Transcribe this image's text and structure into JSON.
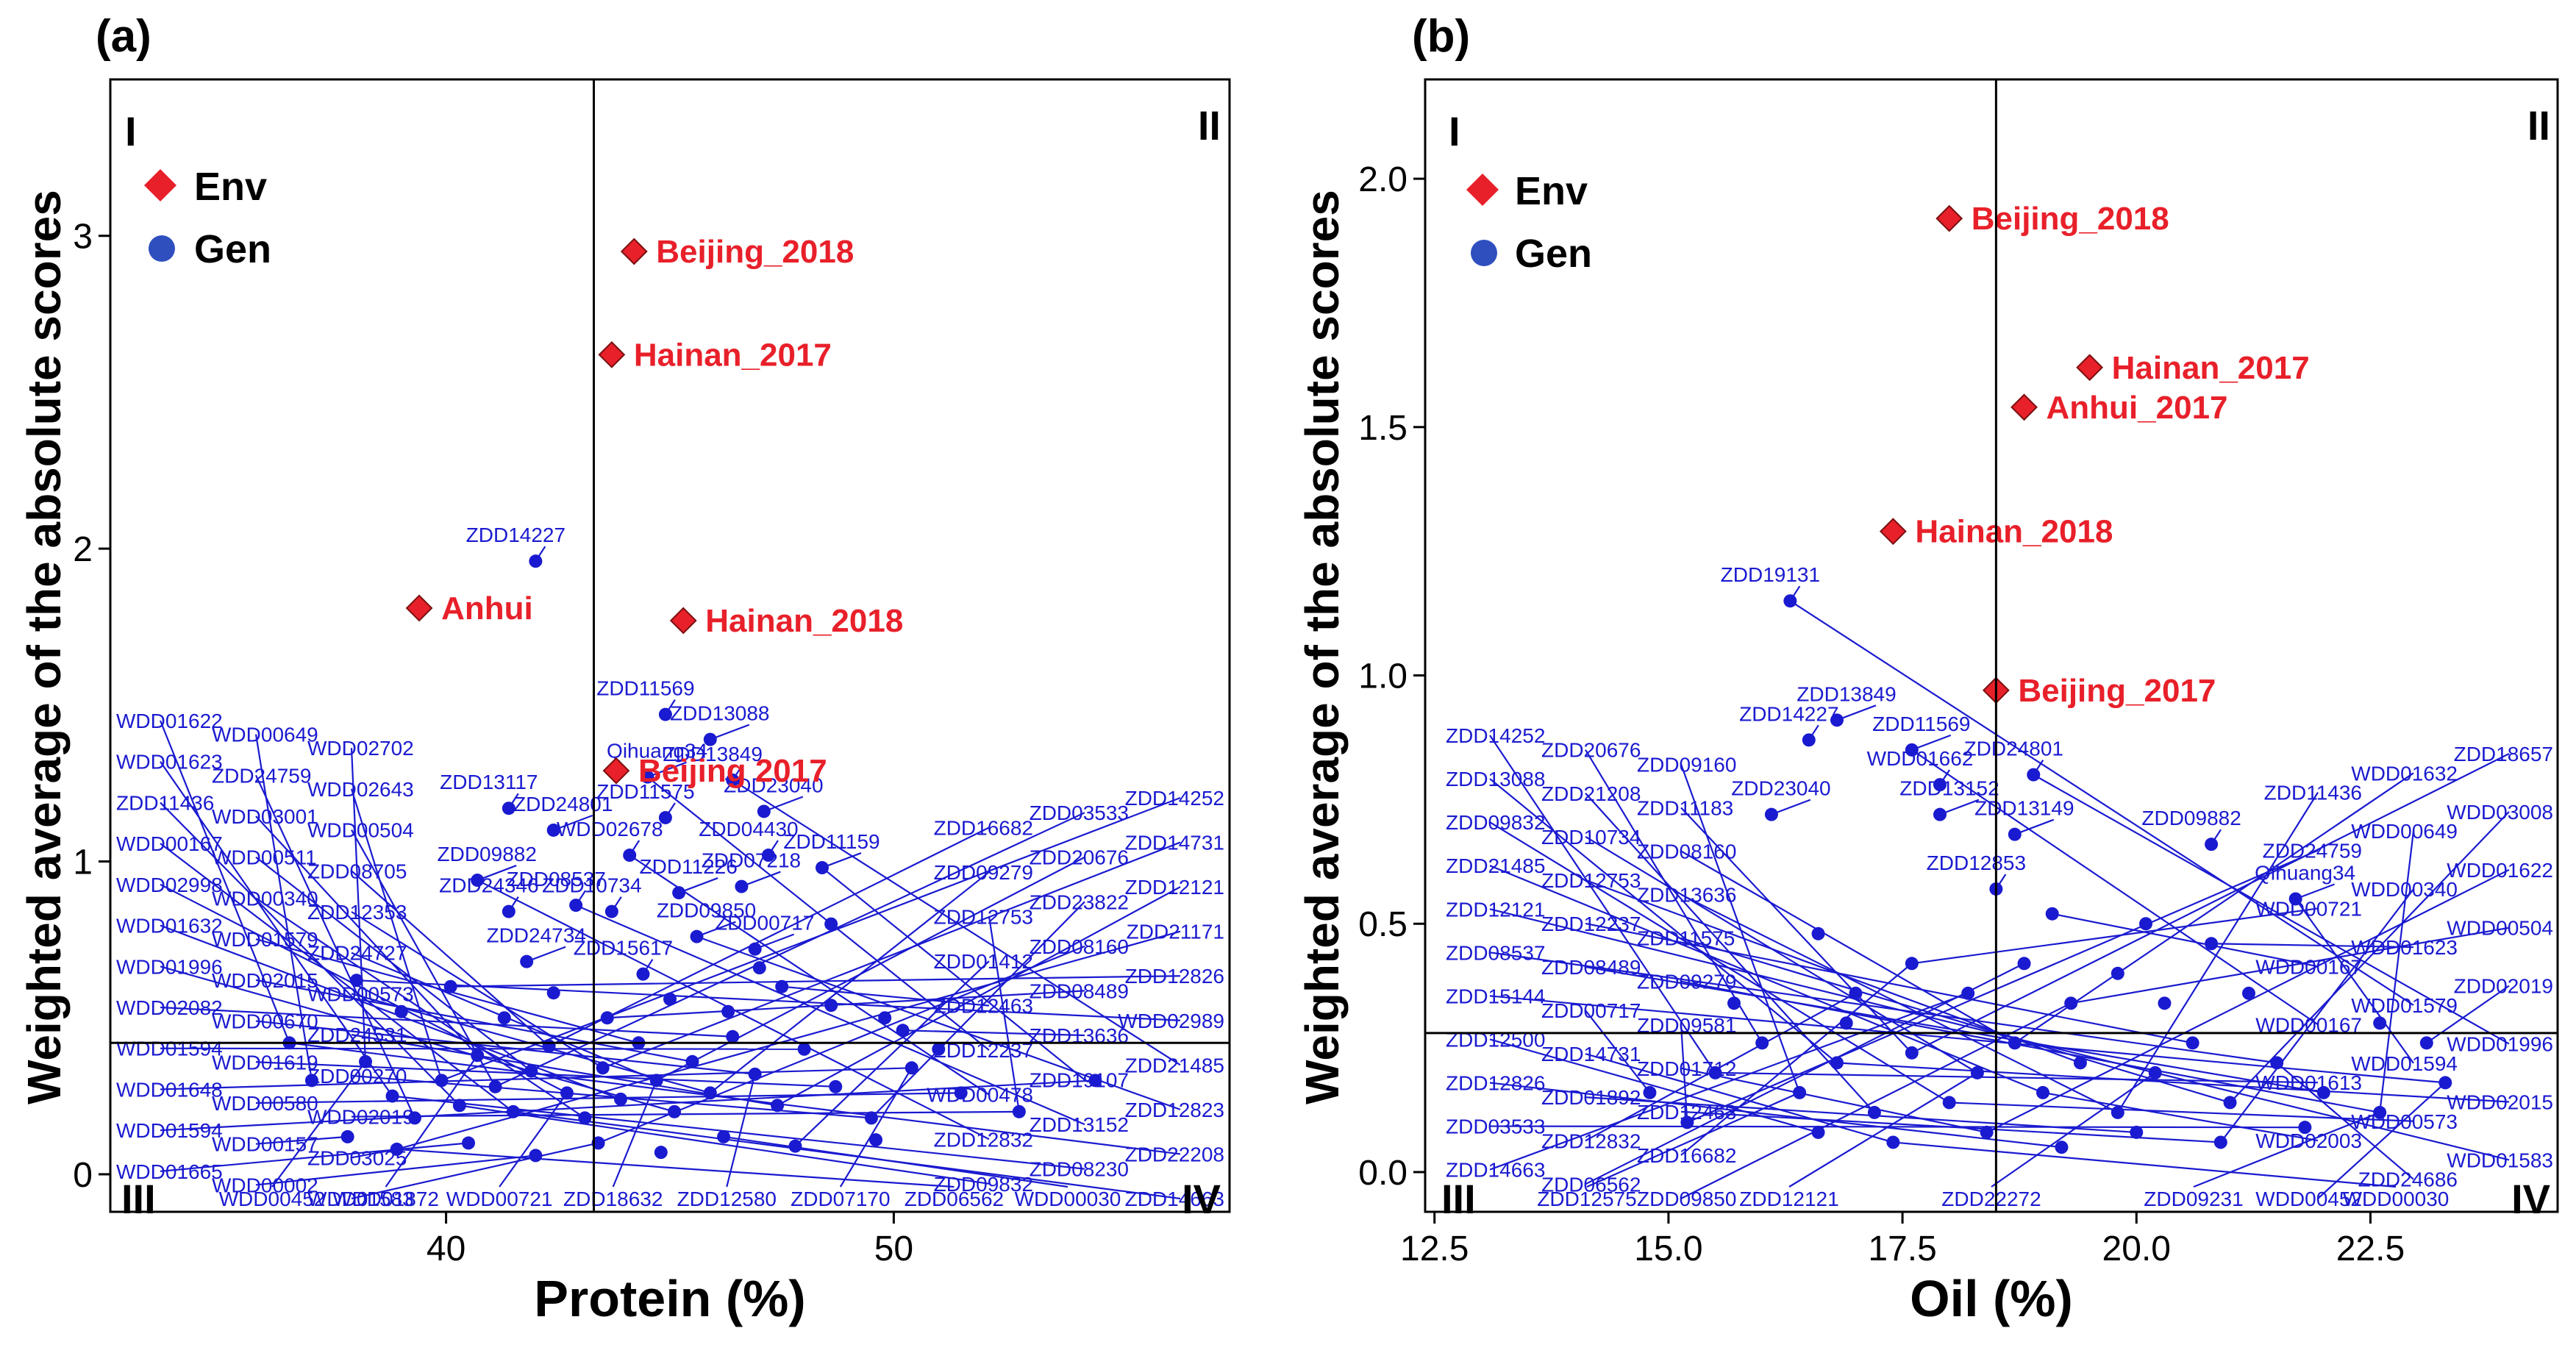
{
  "colors": {
    "env": "#e8202a",
    "gen": "#1a1ad0",
    "axis": "#000000",
    "refline": "#000000"
  },
  "legend": {
    "env": "Env",
    "gen": "Gen"
  },
  "quadrants": [
    "I",
    "II",
    "III",
    "IV"
  ],
  "chart_data": [
    {
      "type": "scatter",
      "panel": "(a)",
      "title": "",
      "xlabel": "Protein (%)",
      "ylabel": "Weighted average of the absolute scores",
      "xlim": [
        32.5,
        57.5
      ],
      "ylim": [
        -0.12,
        3.5
      ],
      "xticks": [
        40,
        50
      ],
      "yticks": [
        0,
        1,
        2,
        3
      ],
      "refline_x": 43.3,
      "refline_y": 0.42,
      "legend": [
        "Env",
        "Gen"
      ],
      "env_points": [
        {
          "label": "Beijing_2018",
          "x": 44.2,
          "y": 2.95
        },
        {
          "label": "Hainan_2017",
          "x": 43.7,
          "y": 2.62
        },
        {
          "label": "Anhui",
          "x": 39.4,
          "y": 1.81
        },
        {
          "label": "Hainan_2018",
          "x": 45.3,
          "y": 1.77
        },
        {
          "label": "Beijing 2017",
          "x": 43.8,
          "y": 1.29
        }
      ],
      "gen_labeled": [
        {
          "label": "ZDD14227",
          "x": 42.0,
          "y": 1.96
        },
        {
          "label": "Qihuang34",
          "x": 44.5,
          "y": 1.27
        },
        {
          "label": "ZDD11569",
          "x": 44.9,
          "y": 1.47
        },
        {
          "label": "ZDD13088",
          "x": 45.9,
          "y": 1.39
        },
        {
          "label": "ZDD13849",
          "x": 46.4,
          "y": 1.26
        },
        {
          "label": "ZDD23040",
          "x": 47.1,
          "y": 1.16
        },
        {
          "label": "ZDD11575",
          "x": 44.9,
          "y": 1.14
        },
        {
          "label": "ZDD11159",
          "x": 48.4,
          "y": 0.98
        },
        {
          "label": "ZDD04430",
          "x": 47.2,
          "y": 1.02
        },
        {
          "label": "ZDD07218",
          "x": 46.6,
          "y": 0.92
        },
        {
          "label": "WDD02678",
          "x": 44.1,
          "y": 1.02
        },
        {
          "label": "ZDD11226",
          "x": 45.2,
          "y": 0.9
        },
        {
          "label": "ZDD10734",
          "x": 43.7,
          "y": 0.84
        },
        {
          "label": "ZDD09850",
          "x": 45.6,
          "y": 0.76
        },
        {
          "label": "ZDD15617",
          "x": 44.4,
          "y": 0.64
        },
        {
          "label": "ZDD00717",
          "x": 46.9,
          "y": 0.72
        },
        {
          "label": "ZDD08537",
          "x": 42.9,
          "y": 0.86
        },
        {
          "label": "ZDD24801",
          "x": 42.4,
          "y": 1.1
        },
        {
          "label": "ZDD13117",
          "x": 41.4,
          "y": 1.17
        },
        {
          "label": "ZDD09882",
          "x": 40.7,
          "y": 0.94
        },
        {
          "label": "ZDD24346",
          "x": 41.4,
          "y": 0.84
        },
        {
          "label": "ZDD24734",
          "x": 41.8,
          "y": 0.68
        }
      ],
      "gen_unlabeled": [
        {
          "x": 36.5,
          "y": 0.42
        },
        {
          "x": 37.0,
          "y": 0.3
        },
        {
          "x": 38.2,
          "y": 0.36
        },
        {
          "x": 38.8,
          "y": 0.25
        },
        {
          "x": 39.3,
          "y": 0.18
        },
        {
          "x": 39.9,
          "y": 0.3
        },
        {
          "x": 40.3,
          "y": 0.22
        },
        {
          "x": 40.7,
          "y": 0.38
        },
        {
          "x": 41.1,
          "y": 0.28
        },
        {
          "x": 41.5,
          "y": 0.2
        },
        {
          "x": 41.9,
          "y": 0.33
        },
        {
          "x": 42.3,
          "y": 0.41
        },
        {
          "x": 42.7,
          "y": 0.26
        },
        {
          "x": 43.1,
          "y": 0.18
        },
        {
          "x": 43.5,
          "y": 0.34
        },
        {
          "x": 43.9,
          "y": 0.24
        },
        {
          "x": 44.3,
          "y": 0.42
        },
        {
          "x": 44.7,
          "y": 0.3
        },
        {
          "x": 45.1,
          "y": 0.2
        },
        {
          "x": 45.5,
          "y": 0.36
        },
        {
          "x": 45.9,
          "y": 0.26
        },
        {
          "x": 46.4,
          "y": 0.44
        },
        {
          "x": 46.9,
          "y": 0.32
        },
        {
          "x": 47.4,
          "y": 0.22
        },
        {
          "x": 48.0,
          "y": 0.4
        },
        {
          "x": 48.7,
          "y": 0.28
        },
        {
          "x": 49.5,
          "y": 0.18
        },
        {
          "x": 50.4,
          "y": 0.34
        },
        {
          "x": 51.5,
          "y": 0.26
        },
        {
          "x": 52.8,
          "y": 0.2
        },
        {
          "x": 54.5,
          "y": 0.3
        },
        {
          "x": 37.8,
          "y": 0.12
        },
        {
          "x": 38.9,
          "y": 0.08
        },
        {
          "x": 40.5,
          "y": 0.1
        },
        {
          "x": 42.0,
          "y": 0.06
        },
        {
          "x": 43.4,
          "y": 0.1
        },
        {
          "x": 44.8,
          "y": 0.07
        },
        {
          "x": 46.2,
          "y": 0.12
        },
        {
          "x": 47.8,
          "y": 0.09
        },
        {
          "x": 49.6,
          "y": 0.11
        },
        {
          "x": 39.0,
          "y": 0.52
        },
        {
          "x": 40.1,
          "y": 0.6
        },
        {
          "x": 41.3,
          "y": 0.5
        },
        {
          "x": 42.4,
          "y": 0.58
        },
        {
          "x": 43.6,
          "y": 0.5
        },
        {
          "x": 45.0,
          "y": 0.56
        },
        {
          "x": 46.3,
          "y": 0.52
        },
        {
          "x": 47.5,
          "y": 0.6
        },
        {
          "x": 48.6,
          "y": 0.54
        },
        {
          "x": 49.8,
          "y": 0.5
        },
        {
          "x": 38.0,
          "y": 0.62
        },
        {
          "x": 48.6,
          "y": 0.8
        },
        {
          "x": 47.0,
          "y": 0.66
        },
        {
          "x": 50.2,
          "y": 0.46
        },
        {
          "x": 51.0,
          "y": 0.4
        }
      ],
      "fan_labels_left": [
        "WDD01622",
        "WDD00649",
        "WDD02702",
        "WDD01623",
        "ZDD24759",
        "WDD02643",
        "ZDD11436",
        "WDD03001",
        "WDD00504",
        "WDD00167",
        "WDD00511",
        "ZDD08705",
        "WDD02998",
        "WDD00340",
        "ZDD12353",
        "WDD01632",
        "WDD01579",
        "ZDD24727",
        "WDD01996",
        "WDD02015",
        "WDD00573",
        "WDD02082",
        "WDD00670",
        "ZDD24531",
        "WDD01594",
        "WDD01619",
        "ZDD00270",
        "WDD01648",
        "WDD00580",
        "WDD02019",
        "WDD01594",
        "WDD00157",
        "ZDD03025",
        "WDD01665",
        "WDD00002",
        "WDD01583"
      ],
      "fan_labels_right": [
        "ZDD14252",
        "ZDD03533",
        "ZDD16682",
        "ZDD14731",
        "ZDD20676",
        "ZDD09279",
        "ZDD12121",
        "ZDD23822",
        "ZDD12753",
        "ZDD21171",
        "ZDD08160",
        "ZDD01412",
        "ZDD12826",
        "ZDD08489",
        "ZDD12463",
        "WDD02989",
        "ZDD13636",
        "ZDD12237",
        "ZDD21485",
        "ZDD19107",
        "WDD00478",
        "ZDD12823",
        "ZDD13152",
        "ZDD12832",
        "ZDD22208",
        "ZDD08230",
        "ZDD09832",
        "ZDD14663"
      ],
      "bottom_labels": [
        "WDD00452",
        "WDD01872",
        "WDD00721",
        "ZDD18632",
        "ZDD12580",
        "ZDD07170",
        "ZDD06562",
        "WDD00030"
      ]
    },
    {
      "type": "scatter",
      "panel": "(b)",
      "title": "",
      "xlabel": "Oil (%)",
      "ylabel": "Weighted average of the absolute scores",
      "xlim": [
        12.4,
        24.5
      ],
      "ylim": [
        -0.08,
        2.2
      ],
      "xticks": [
        12.5,
        15.0,
        17.5,
        20.0,
        22.5
      ],
      "xtick_labels": [
        "12.5",
        "15.0",
        "17.5",
        "20.0",
        "22.5"
      ],
      "yticks": [
        0.0,
        0.5,
        1.0,
        1.5,
        2.0
      ],
      "ytick_labels": [
        "0.0",
        "0.5",
        "1.0",
        "1.5",
        "2.0"
      ],
      "refline_x": 18.5,
      "refline_y": 0.28,
      "legend": [
        "Env",
        "Gen"
      ],
      "env_points": [
        {
          "label": "Beijing_2018",
          "x": 18.0,
          "y": 1.92
        },
        {
          "label": "Hainan_2017",
          "x": 19.5,
          "y": 1.62
        },
        {
          "label": "Anhui_2017",
          "x": 18.8,
          "y": 1.54
        },
        {
          "label": "Hainan_2018",
          "x": 17.4,
          "y": 1.29
        },
        {
          "label": "Beijing_2017",
          "x": 18.5,
          "y": 0.97
        }
      ],
      "gen_labeled": [
        {
          "label": "ZDD19131",
          "x": 16.3,
          "y": 1.15
        },
        {
          "label": "ZDD13849",
          "x": 16.8,
          "y": 0.91
        },
        {
          "label": "ZDD14227",
          "x": 16.5,
          "y": 0.87
        },
        {
          "label": "ZDD11569",
          "x": 17.6,
          "y": 0.85
        },
        {
          "label": "WDD01662",
          "x": 17.9,
          "y": 0.78
        },
        {
          "label": "ZDD13152",
          "x": 17.9,
          "y": 0.72
        },
        {
          "label": "ZDD24801",
          "x": 18.9,
          "y": 0.8
        },
        {
          "label": "ZDD13149",
          "x": 18.7,
          "y": 0.68
        },
        {
          "label": "ZDD12853",
          "x": 18.5,
          "y": 0.57
        },
        {
          "label": "Qihuang34",
          "x": 21.7,
          "y": 0.55
        },
        {
          "label": "ZDD09882",
          "x": 20.8,
          "y": 0.66
        },
        {
          "label": "ZDD23040",
          "x": 16.1,
          "y": 0.72
        }
      ],
      "gen_unlabeled": [
        {
          "x": 15.5,
          "y": 0.2
        },
        {
          "x": 16.0,
          "y": 0.26
        },
        {
          "x": 16.4,
          "y": 0.16
        },
        {
          "x": 16.8,
          "y": 0.22
        },
        {
          "x": 17.2,
          "y": 0.12
        },
        {
          "x": 17.6,
          "y": 0.24
        },
        {
          "x": 18.0,
          "y": 0.14
        },
        {
          "x": 18.3,
          "y": 0.2
        },
        {
          "x": 18.7,
          "y": 0.26
        },
        {
          "x": 19.0,
          "y": 0.16
        },
        {
          "x": 19.4,
          "y": 0.22
        },
        {
          "x": 19.8,
          "y": 0.12
        },
        {
          "x": 20.2,
          "y": 0.2
        },
        {
          "x": 20.6,
          "y": 0.26
        },
        {
          "x": 21.0,
          "y": 0.14
        },
        {
          "x": 21.5,
          "y": 0.22
        },
        {
          "x": 22.0,
          "y": 0.16
        },
        {
          "x": 22.6,
          "y": 0.12
        },
        {
          "x": 23.3,
          "y": 0.18
        },
        {
          "x": 14.8,
          "y": 0.16
        },
        {
          "x": 15.2,
          "y": 0.1
        },
        {
          "x": 16.6,
          "y": 0.08
        },
        {
          "x": 17.4,
          "y": 0.06
        },
        {
          "x": 18.4,
          "y": 0.08
        },
        {
          "x": 19.2,
          "y": 0.05
        },
        {
          "x": 20.0,
          "y": 0.08
        },
        {
          "x": 20.9,
          "y": 0.06
        },
        {
          "x": 21.8,
          "y": 0.09
        },
        {
          "x": 17.0,
          "y": 0.36
        },
        {
          "x": 17.6,
          "y": 0.42
        },
        {
          "x": 18.2,
          "y": 0.36
        },
        {
          "x": 18.8,
          "y": 0.42
        },
        {
          "x": 19.3,
          "y": 0.34
        },
        {
          "x": 19.8,
          "y": 0.4
        },
        {
          "x": 20.3,
          "y": 0.34
        },
        {
          "x": 20.8,
          "y": 0.46
        },
        {
          "x": 21.2,
          "y": 0.36
        },
        {
          "x": 16.6,
          "y": 0.48
        },
        {
          "x": 19.1,
          "y": 0.52
        },
        {
          "x": 20.1,
          "y": 0.5
        },
        {
          "x": 22.6,
          "y": 0.3
        },
        {
          "x": 23.1,
          "y": 0.26
        },
        {
          "x": 15.7,
          "y": 0.34
        },
        {
          "x": 16.9,
          "y": 0.3
        }
      ],
      "fan_labels_left": [
        "ZDD14252",
        "ZDD20676",
        "ZDD09160",
        "ZDD13088",
        "ZDD21208",
        "ZDD11183",
        "ZDD09832",
        "ZDD10734",
        "ZDD08160",
        "ZDD21485",
        "ZDD12753",
        "ZDD13636",
        "ZDD12121",
        "ZDD12237",
        "ZDD11575",
        "ZDD08537",
        "ZDD08489",
        "ZDD09279",
        "ZDD15144",
        "ZDD00717",
        "ZDD09581",
        "ZDD12500",
        "ZDD14731",
        "ZDD01712",
        "ZDD12826",
        "ZDD01892",
        "ZDD12463",
        "ZDD03533",
        "ZDD12832",
        "ZDD16682",
        "ZDD14663",
        "ZDD06562",
        "ZDD09850"
      ],
      "fan_labels_right": [
        "ZDD18657",
        "WDD01632",
        "ZDD11436",
        "WDD03008",
        "WDD00649",
        "ZDD24759",
        "WDD01622",
        "WDD00340",
        "WDD00721",
        "WDD00504",
        "WDD01623",
        "WDD00167",
        "ZDD02019",
        "WDD01579",
        "WDD00167",
        "WDD01996",
        "WDD01594",
        "WDD01613",
        "WDD02015",
        "WDD00573",
        "WDD02003",
        "WDD01583",
        "ZDD24686",
        "WDD00452"
      ],
      "bottom_labels": [
        "ZDD12575",
        "ZDD12121",
        "ZDD22272",
        "ZDD09231",
        "WDD00030"
      ]
    }
  ]
}
